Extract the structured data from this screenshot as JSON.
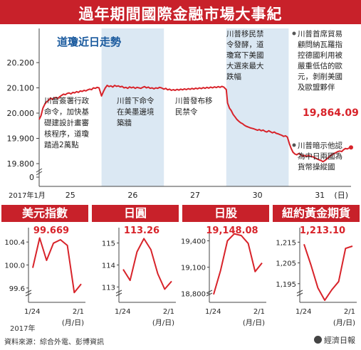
{
  "title": "過年期間國際金融市場大事紀",
  "colors": {
    "accent": "#c8212a",
    "band": "#dbe8f3",
    "line": "#d8232a"
  },
  "main_chart": {
    "subtitle": "道瓊近日走勢",
    "year_label": "2017年1月",
    "unit_label": "(日)",
    "chart_data": {
      "type": "line",
      "title": "道瓊近日走勢",
      "xlabel": "(日)",
      "ylabel": "",
      "categories": [
        "25",
        "26",
        "27",
        "30",
        "31"
      ],
      "ylim": [
        19750,
        20250
      ],
      "yticks": [
        "20.200",
        "20.100",
        "20.000",
        "19.900",
        "19.800",
        "0"
      ],
      "shaded_days": [
        "26",
        "30"
      ],
      "series": [
        {
          "values": [
            [
              0.0,
              19975
            ],
            [
              0.03,
              19990
            ],
            [
              0.06,
              20020
            ],
            [
              0.09,
              20035
            ],
            [
              0.12,
              20045
            ],
            [
              0.15,
              20050
            ],
            [
              0.18,
              20060
            ],
            [
              0.21,
              20055
            ],
            [
              0.24,
              20060
            ],
            [
              0.27,
              20062
            ],
            [
              0.3,
              20058
            ],
            [
              0.33,
              20065
            ],
            [
              0.36,
              20070
            ],
            [
              0.39,
              20075
            ],
            [
              0.42,
              20073
            ],
            [
              0.45,
              20078
            ],
            [
              0.48,
              20080
            ],
            [
              0.51,
              20076
            ],
            [
              0.54,
              20082
            ],
            [
              0.57,
              20080
            ],
            [
              0.6,
              20085
            ],
            [
              0.63,
              20082
            ],
            [
              0.66,
              20088
            ],
            [
              0.69,
              20086
            ],
            [
              0.72,
              20090
            ],
            [
              0.75,
              20088
            ],
            [
              0.78,
              20092
            ],
            [
              0.81,
              20095
            ],
            [
              0.84,
              20093
            ],
            [
              0.87,
              20100
            ],
            [
              0.9,
              20098
            ],
            [
              0.93,
              20102
            ],
            [
              0.96,
              20100
            ],
            [
              1.0,
              20068
            ],
            [
              1.03,
              20085
            ],
            [
              1.06,
              20100
            ],
            [
              1.09,
              20110
            ],
            [
              1.12,
              20105
            ],
            [
              1.15,
              20108
            ],
            [
              1.18,
              20103
            ],
            [
              1.21,
              20110
            ],
            [
              1.24,
              20106
            ],
            [
              1.27,
              20108
            ],
            [
              1.3,
              20104
            ],
            [
              1.33,
              20106
            ],
            [
              1.36,
              20100
            ],
            [
              1.39,
              20102
            ],
            [
              1.42,
              20098
            ],
            [
              1.45,
              20104
            ],
            [
              1.48,
              20100
            ],
            [
              1.51,
              20103
            ],
            [
              1.54,
              20098
            ],
            [
              1.57,
              20102
            ],
            [
              1.6,
              20100
            ],
            [
              1.63,
              20098
            ],
            [
              1.66,
              20102
            ],
            [
              1.69,
              20105
            ],
            [
              1.72,
              20100
            ],
            [
              1.75,
              20103
            ],
            [
              1.78,
              20098
            ],
            [
              1.81,
              20100
            ],
            [
              1.84,
              20096
            ],
            [
              1.87,
              20100
            ],
            [
              1.9,
              20098
            ],
            [
              1.93,
              20102
            ],
            [
              1.96,
              20100
            ],
            [
              2.0,
              20095
            ],
            [
              2.03,
              20098
            ],
            [
              2.06,
              20092
            ],
            [
              2.09,
              20095
            ],
            [
              2.12,
              20090
            ],
            [
              2.15,
              20093
            ],
            [
              2.18,
              20090
            ],
            [
              2.21,
              20094
            ],
            [
              2.24,
              20091
            ],
            [
              2.27,
              20095
            ],
            [
              2.3,
              20092
            ],
            [
              2.33,
              20096
            ],
            [
              2.36,
              20093
            ],
            [
              2.39,
              20097
            ],
            [
              2.42,
              20094
            ],
            [
              2.45,
              20098
            ],
            [
              2.48,
              20095
            ],
            [
              2.51,
              20099
            ],
            [
              2.54,
              20096
            ],
            [
              2.57,
              20100
            ],
            [
              2.6,
              20097
            ],
            [
              2.63,
              20101
            ],
            [
              2.66,
              20098
            ],
            [
              2.69,
              20102
            ],
            [
              2.72,
              20099
            ],
            [
              2.75,
              20103
            ],
            [
              2.78,
              20100
            ],
            [
              2.81,
              20104
            ],
            [
              2.84,
              20101
            ],
            [
              2.87,
              20105
            ],
            [
              2.9,
              20102
            ],
            [
              2.93,
              20106
            ],
            [
              2.96,
              20103
            ],
            [
              3.0,
              20093
            ],
            [
              3.02,
              20040
            ],
            [
              3.05,
              20020
            ],
            [
              3.08,
              20010
            ],
            [
              3.11,
              19995
            ],
            [
              3.14,
              19985
            ],
            [
              3.17,
              19975
            ],
            [
              3.2,
              19968
            ],
            [
              3.23,
              19962
            ],
            [
              3.26,
              19958
            ],
            [
              3.29,
              19952
            ],
            [
              3.32,
              19948
            ],
            [
              3.35,
              19945
            ],
            [
              3.38,
              19942
            ],
            [
              3.41,
              19940
            ],
            [
              3.44,
              19938
            ],
            [
              3.47,
              19935
            ],
            [
              3.5,
              19932
            ],
            [
              3.53,
              19935
            ],
            [
              3.56,
              19930
            ],
            [
              3.59,
              19933
            ],
            [
              3.62,
              19928
            ],
            [
              3.65,
              19925
            ],
            [
              3.68,
              19930
            ],
            [
              3.71,
              19926
            ],
            [
              3.74,
              19922
            ],
            [
              3.77,
              19925
            ],
            [
              3.8,
              19920
            ],
            [
              3.83,
              19918
            ],
            [
              3.86,
              19915
            ],
            [
              3.89,
              19912
            ],
            [
              3.92,
              19908
            ],
            [
              3.95,
              19910
            ],
            [
              3.98,
              19905
            ],
            [
              4.01,
              19880
            ],
            [
              4.04,
              19860
            ],
            [
              4.07,
              19845
            ],
            [
              4.1,
              19838
            ],
            [
              4.13,
              19835
            ],
            [
              4.16,
              19840
            ],
            [
              4.19,
              19836
            ],
            [
              4.22,
              19830
            ],
            [
              4.25,
              19833
            ],
            [
              4.28,
              19828
            ],
            [
              4.31,
              19832
            ],
            [
              4.34,
              19830
            ],
            [
              4.37,
              19828
            ],
            [
              4.4,
              19826
            ],
            [
              4.43,
              19822
            ],
            [
              4.46,
              19818
            ],
            [
              4.49,
              19815
            ],
            [
              4.52,
              19812
            ],
            [
              4.55,
              19808
            ],
            [
              4.58,
              19812
            ],
            [
              4.61,
              19818
            ],
            [
              4.64,
              19825
            ],
            [
              4.67,
              19830
            ],
            [
              4.7,
              19836
            ],
            [
              4.73,
              19840
            ],
            [
              4.76,
              19844
            ],
            [
              4.79,
              19848
            ],
            [
              4.82,
              19850
            ],
            [
              4.85,
              19848
            ],
            [
              4.88,
              19855
            ],
            [
              4.91,
              19860
            ],
            [
              4.94,
              19858
            ],
            [
              4.97,
              19862
            ],
            [
              5.0,
              19864
            ]
          ]
        }
      ]
    },
    "last_value": "19,864.09",
    "annotations": [
      {
        "lines": [
          "川普簽署行政",
          "命令，加快基",
          "礎建設計畫審",
          "核程序，道瓊",
          "踏過2萬點"
        ]
      },
      {
        "lines": [
          "川普下命令",
          "在美墨邊境",
          "築牆"
        ]
      },
      {
        "lines": [
          "川普發布移",
          "民禁令"
        ]
      },
      {
        "lines": [
          "川普移民禁",
          "令發酵，道",
          "瓊寫下美國",
          "大選來最大",
          "跌幅"
        ]
      },
      {
        "lines": [
          "川普首席貿易",
          "顧問納瓦羅指",
          "控德國利用被",
          "嚴重低估的歐",
          "元，剝削美國",
          "及歐盟夥伴"
        ]
      },
      {
        "lines": [
          "川普暗示他認",
          "為中日兩國為",
          "貨幣操縱國"
        ]
      }
    ]
  },
  "mini_charts": [
    {
      "title": "美元指數",
      "value": "99.669",
      "x_start": "1/24",
      "x_end": "2/1",
      "unit": "(月/日)",
      "year": "2017年",
      "chart_data": {
        "type": "line",
        "yticks": [
          "100.4",
          "100.0",
          "99.6"
        ],
        "ylim": [
          99.35,
          100.65
        ],
        "series": [
          {
            "values": [
              99.95,
              100.47,
              100.08,
              100.38,
              100.44,
              100.34,
              99.52,
              99.669
            ]
          }
        ]
      }
    },
    {
      "title": "日圓",
      "value": "113.26",
      "x_start": "1/24",
      "x_end": "2/1",
      "unit": "(月/日)",
      "chart_data": {
        "type": "line",
        "yticks": [
          "115",
          "114",
          "113"
        ],
        "ylim": [
          112.3,
          115.7
        ],
        "series": [
          {
            "values": [
              113.8,
              113.3,
              114.6,
              115.2,
              114.7,
              113.6,
              112.9,
              113.26
            ]
          }
        ]
      }
    },
    {
      "title": "日股",
      "value": "19,148.08",
      "x_start": "1/24",
      "x_end": "2/1",
      "unit": "(月/日)",
      "chart_data": {
        "type": "line",
        "yticks": [
          "19,400",
          "19,100",
          "18,800"
        ],
        "ylim": [
          18700,
          19550
        ],
        "series": [
          {
            "values": [
              18790,
              19060,
              19400,
              19480,
              19460,
              19370,
              19050,
              19148.08
            ]
          }
        ]
      }
    },
    {
      "title": "紐約黃金期貨",
      "value": "1,213.10",
      "x_start": "1/24",
      "x_end": "2/1",
      "unit": "(月/日)",
      "chart_data": {
        "type": "line",
        "yticks": [
          "1,215",
          "1,205",
          "1,195"
        ],
        "ylim": [
          1186,
          1222
        ],
        "series": [
          {
            "values": [
              1214,
              1204,
              1193,
              1187,
              1192,
              1196,
              1212,
              1213.1
            ]
          }
        ]
      }
    }
  ],
  "footer": {
    "source": "資料來源：綜合外電、彭博資訊",
    "logo": "經濟日報"
  }
}
